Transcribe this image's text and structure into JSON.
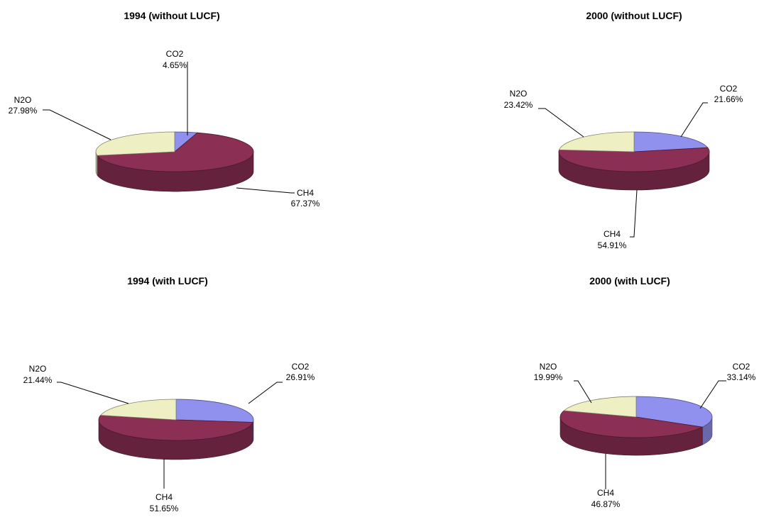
{
  "chart_data": [
    {
      "type": "pie",
      "title": "1994 (without LUCF)",
      "slices": [
        {
          "label": "CO2",
          "value": 4.65,
          "value_text": "4.65%"
        },
        {
          "label": "CH4",
          "value": 67.37,
          "value_text": "67.37%"
        },
        {
          "label": "N2O",
          "value": 27.98,
          "value_text": "27.98%"
        }
      ]
    },
    {
      "type": "pie",
      "title": "2000 (without LUCF)",
      "slices": [
        {
          "label": "CO2",
          "value": 21.66,
          "value_text": "21.66%"
        },
        {
          "label": "CH4",
          "value": 54.91,
          "value_text": "54.91%"
        },
        {
          "label": "N2O",
          "value": 23.42,
          "value_text": "23.42%"
        }
      ]
    },
    {
      "type": "pie",
      "title": "1994 (with LUCF)",
      "slices": [
        {
          "label": "CO2",
          "value": 26.91,
          "value_text": "26.91%"
        },
        {
          "label": "CH4",
          "value": 51.65,
          "value_text": "51.65%"
        },
        {
          "label": "N2O",
          "value": 21.44,
          "value_text": "21.44%"
        }
      ]
    },
    {
      "type": "pie",
      "title": "2000 (with LUCF)",
      "slices": [
        {
          "label": "CO2",
          "value": 33.14,
          "value_text": "33.14%"
        },
        {
          "label": "CH4",
          "value": 46.87,
          "value_text": "46.87%"
        },
        {
          "label": "N2O",
          "value": 19.99,
          "value_text": "19.99%"
        }
      ]
    }
  ],
  "colors": {
    "CO2": "#9090ee",
    "CH4": "#8b2f55",
    "N2O": "#efefc4"
  }
}
